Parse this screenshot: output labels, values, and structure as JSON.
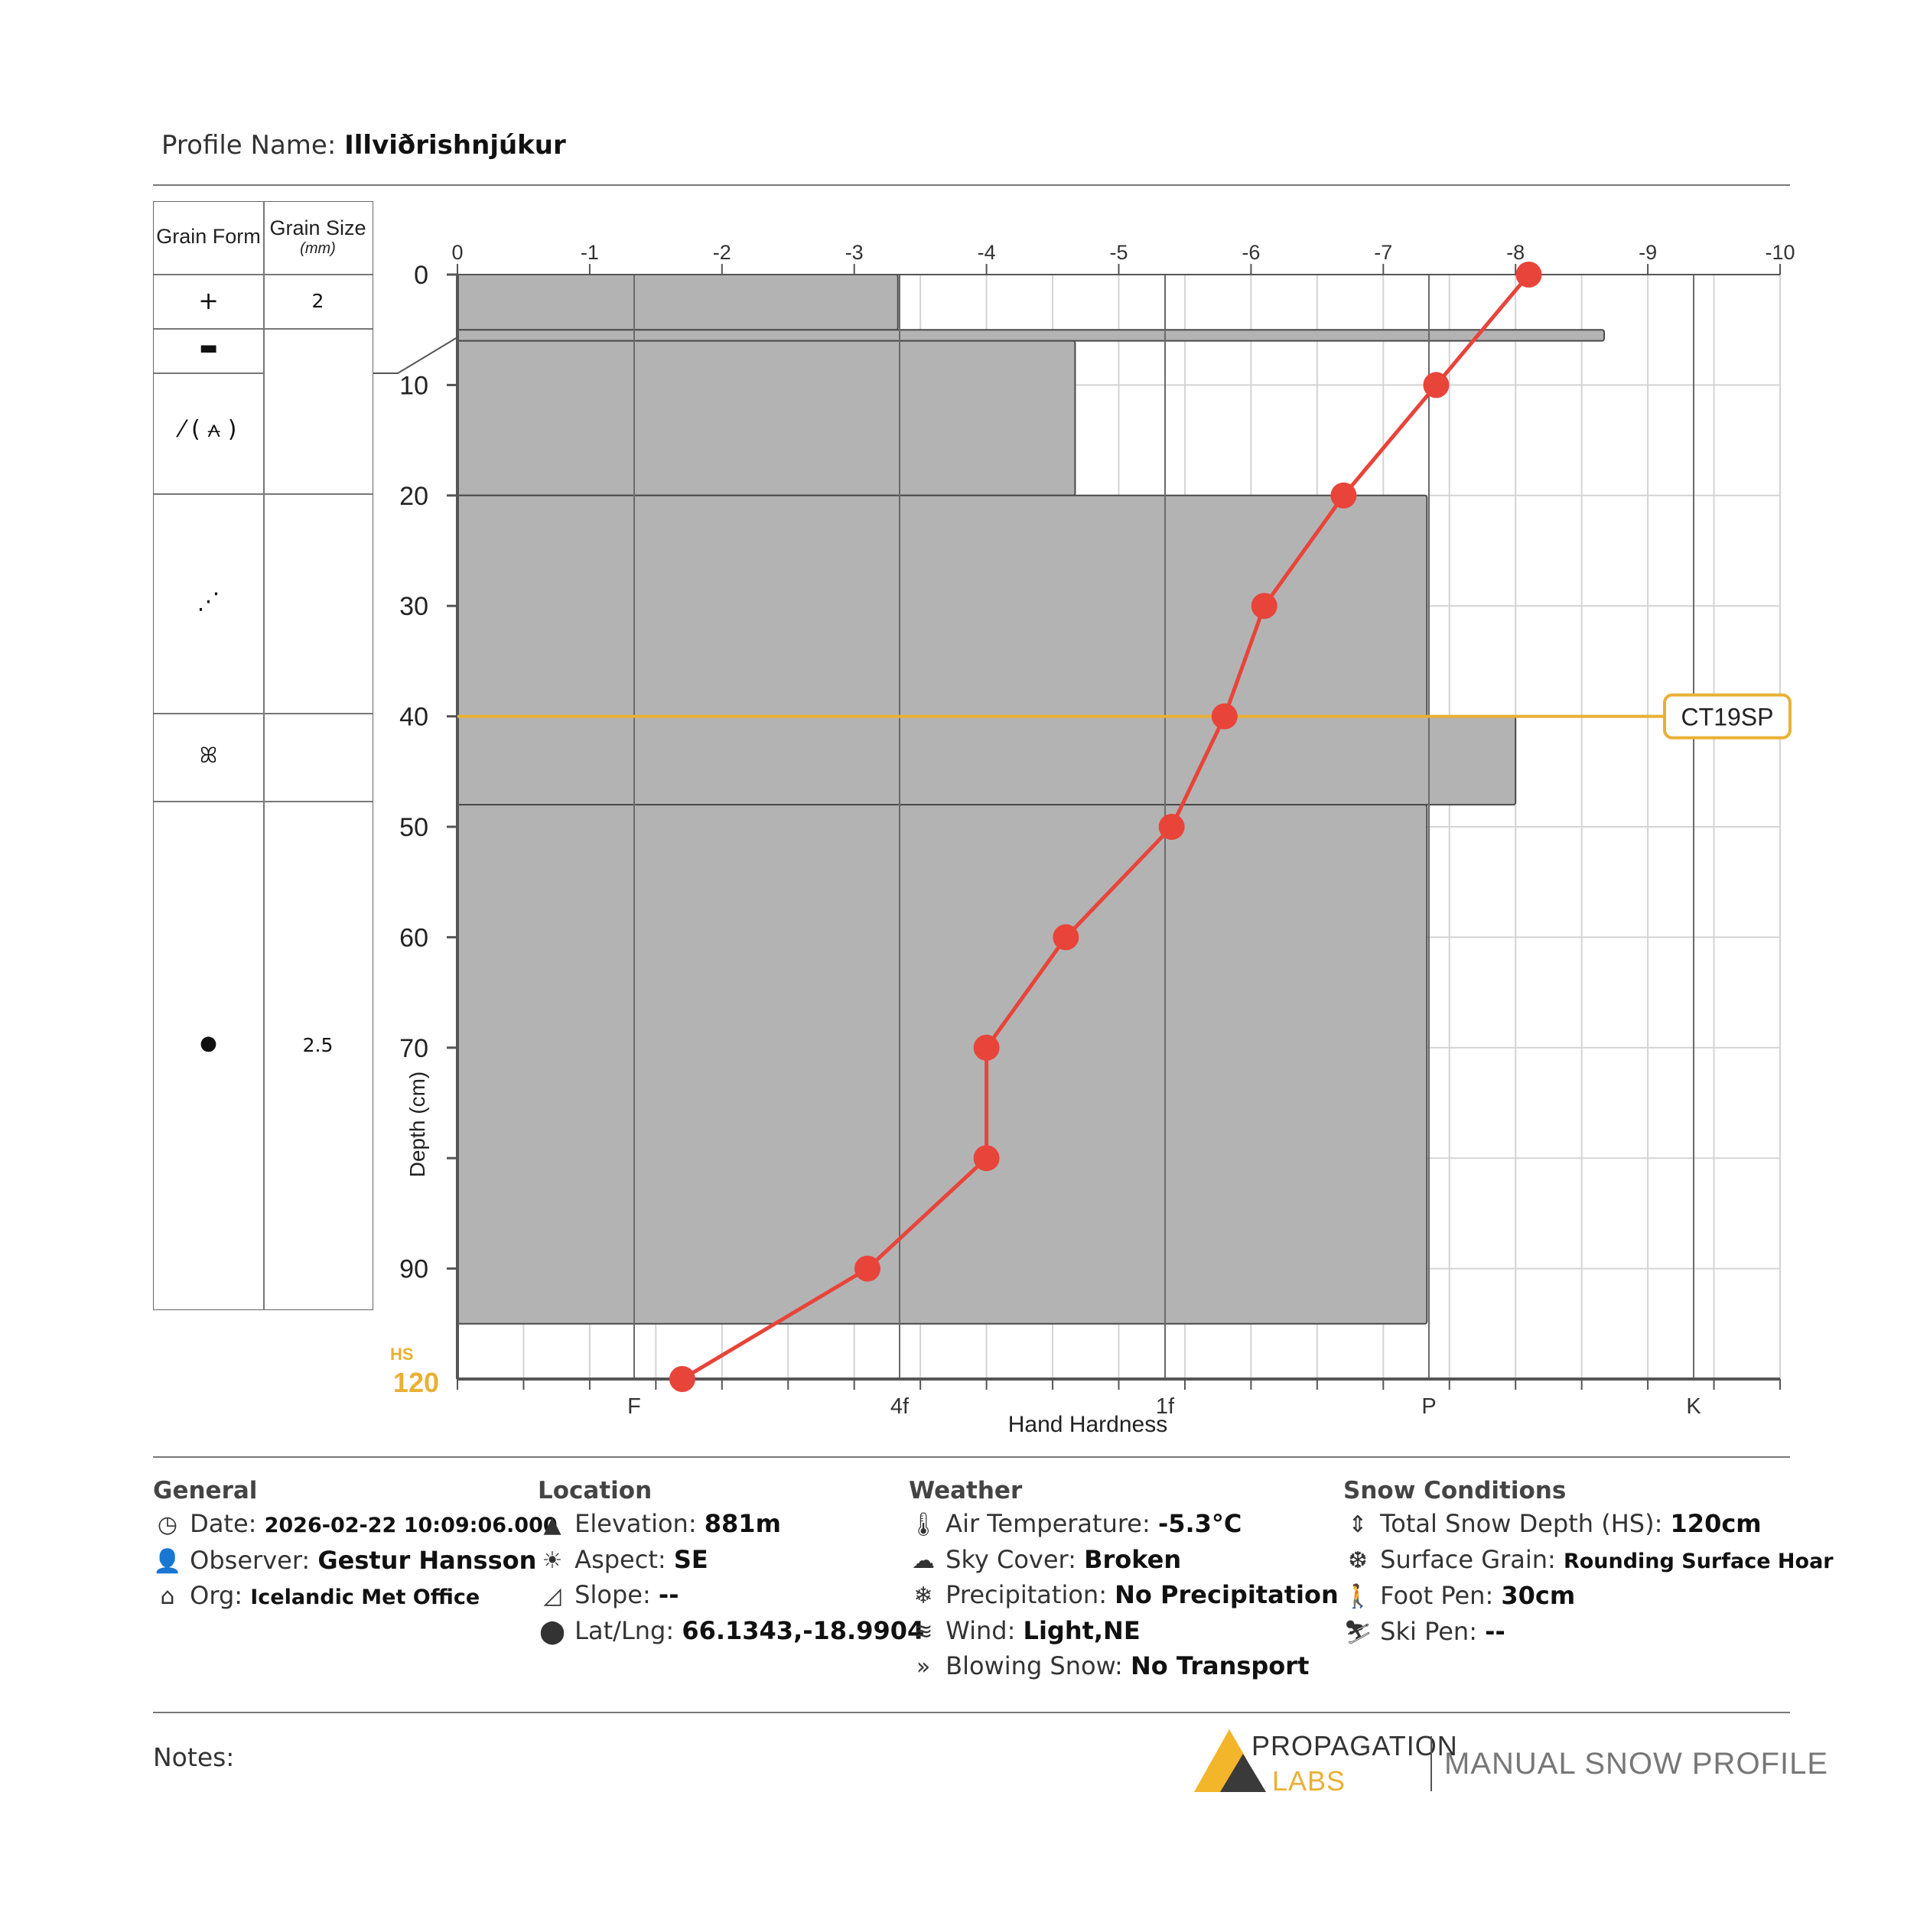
{
  "profile": {
    "label": "Profile Name:",
    "name": "Illviðrishnjúkur"
  },
  "grain_table": {
    "col_form": "Grain Form",
    "col_size": "Grain Size",
    "col_size_unit": "(mm)",
    "rows": [
      {
        "form": "+",
        "size": "2"
      },
      {
        "form": "▬",
        "size": ""
      },
      {
        "form": "⁄ ( ⩜ )",
        "size": ""
      },
      {
        "form": "⋰",
        "size": ""
      },
      {
        "form": "ꕤ",
        "size": ""
      },
      {
        "form": "●",
        "size": "2.5"
      }
    ]
  },
  "chart_data": {
    "type": "bar",
    "title": "",
    "ylabel": "Depth (cm)",
    "xlabel": "Hand Hardness",
    "y_ticks": [
      "0",
      "10",
      "20",
      "30",
      "40",
      "50",
      "60",
      "70",
      "",
      "90"
    ],
    "ylim": [
      0,
      100
    ],
    "hs_label": "HS",
    "hs_value": "120",
    "hardness_ticks": [
      "F",
      "4f",
      "1f",
      "P",
      "K"
    ],
    "temperature_ticks": [
      "0",
      "-1",
      "-2",
      "-3",
      "-4",
      "-5",
      "-6",
      "-7",
      "-8",
      "-9",
      "-10"
    ],
    "temperature_range": [
      0,
      -10
    ],
    "layers": [
      {
        "top": 0,
        "bottom": 5,
        "hardness": -3.33
      },
      {
        "top": 5,
        "bottom": 6,
        "hardness": -8.67
      },
      {
        "top": 6,
        "bottom": 20,
        "hardness": -4.67
      },
      {
        "top": 20,
        "bottom": 40,
        "hardness": -7.33
      },
      {
        "top": 40,
        "bottom": 48,
        "hardness": -8.0
      },
      {
        "top": 48,
        "bottom": 95,
        "hardness": -7.33
      }
    ],
    "temperature_profile": [
      {
        "depth": 0,
        "temp": -8.1
      },
      {
        "depth": 10,
        "temp": -7.4
      },
      {
        "depth": 20,
        "temp": -6.7
      },
      {
        "depth": 30,
        "temp": -6.1
      },
      {
        "depth": 40,
        "temp": -5.8
      },
      {
        "depth": 50,
        "temp": -5.4
      },
      {
        "depth": 60,
        "temp": -4.6
      },
      {
        "depth": 70,
        "temp": -4.0
      },
      {
        "depth": 80,
        "temp": -4.0
      },
      {
        "depth": 90,
        "temp": -3.1
      },
      {
        "depth": 100,
        "temp": -1.7
      }
    ],
    "stability_test": {
      "depth": 40,
      "label": "CT19SP",
      "color": "#e9b033"
    },
    "colors": {
      "layer": "#b3b3b3",
      "temperature": "#e8443a",
      "hs": "#e9b033"
    }
  },
  "general": {
    "title": "General",
    "date_label": "Date:",
    "date": "2026-02-22 10:09:06.000",
    "observer_label": "Observer:",
    "observer": "Gestur Hansson",
    "org_label": "Org:",
    "org": "Icelandic Met Office"
  },
  "location": {
    "title": "Location",
    "elevation_label": "Elevation:",
    "elevation": "881m",
    "aspect_label": "Aspect:",
    "aspect": "SE",
    "slope_label": "Slope:",
    "slope": "--",
    "latlng_label": "Lat/Lng:",
    "latlng": "66.1343,-18.9904"
  },
  "weather": {
    "title": "Weather",
    "air_label": "Air Temperature:",
    "air": "-5.3°C",
    "sky_label": "Sky Cover:",
    "sky": "Broken",
    "precip_label": "Precipitation:",
    "precip": "No Precipitation",
    "wind_label": "Wind:",
    "wind": "Light,NE",
    "blowing_label": "Blowing Snow:",
    "blowing": "No Transport"
  },
  "snow": {
    "title": "Snow Conditions",
    "hs_label": "Total Snow Depth (HS):",
    "hs": "120cm",
    "surface_label": "Surface Grain:",
    "surface": "Rounding Surface Hoar",
    "foot_label": "Foot Pen:",
    "foot": "30cm",
    "ski_label": "Ski Pen:",
    "ski": "--"
  },
  "notes_label": "Notes:",
  "logo": {
    "line1": "PROPAGATION",
    "line2": "LABS",
    "product": "MANUAL SNOW PROFILE"
  }
}
